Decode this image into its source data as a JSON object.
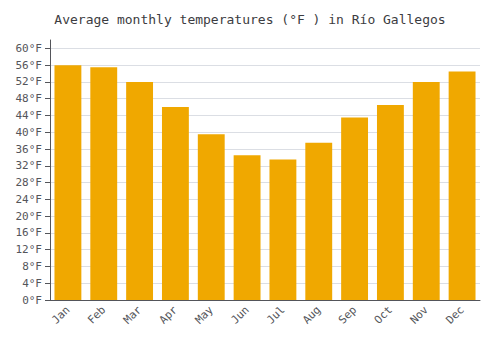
{
  "chart_data": {
    "type": "bar",
    "title": "Average monthly temperatures (°F ) in Río Gallegos",
    "categories": [
      "Jan",
      "Feb",
      "Mar",
      "Apr",
      "May",
      "Jun",
      "Jul",
      "Aug",
      "Sep",
      "Oct",
      "Nov",
      "Dec"
    ],
    "values": [
      56.0,
      55.5,
      52.0,
      46.0,
      39.5,
      34.5,
      33.5,
      37.5,
      43.5,
      46.5,
      52.0,
      54.5
    ],
    "color": "#F0A800",
    "ylim": [
      0,
      62
    ],
    "yticks": [
      {
        "value": 0,
        "label": "0°F"
      },
      {
        "value": 4,
        "label": "4°F"
      },
      {
        "value": 8,
        "label": "8°F"
      },
      {
        "value": 12,
        "label": "12°F"
      },
      {
        "value": 16,
        "label": "16°F"
      },
      {
        "value": 20,
        "label": "20°F"
      },
      {
        "value": 24,
        "label": "24°F"
      },
      {
        "value": 28,
        "label": "28°F"
      },
      {
        "value": 32,
        "label": "32°F"
      },
      {
        "value": 36,
        "label": "36°F"
      },
      {
        "value": 40,
        "label": "40°F"
      },
      {
        "value": 44,
        "label": "44°F"
      },
      {
        "value": 48,
        "label": "48°F"
      },
      {
        "value": 52,
        "label": "52°F"
      },
      {
        "value": 56,
        "label": "56°F"
      },
      {
        "value": 60,
        "label": "60°F"
      }
    ],
    "grid": true
  }
}
